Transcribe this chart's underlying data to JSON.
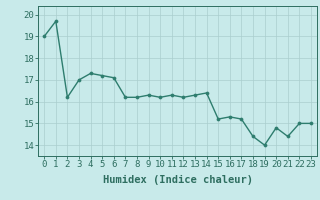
{
  "x": [
    0,
    1,
    2,
    3,
    4,
    5,
    6,
    7,
    8,
    9,
    10,
    11,
    12,
    13,
    14,
    15,
    16,
    17,
    18,
    19,
    20,
    21,
    22,
    23
  ],
  "y": [
    19.0,
    19.7,
    16.2,
    17.0,
    17.3,
    17.2,
    17.1,
    16.2,
    16.2,
    16.3,
    16.2,
    16.3,
    16.2,
    16.3,
    16.4,
    15.2,
    15.3,
    15.2,
    14.4,
    14.0,
    14.8,
    14.4,
    15.0,
    15.0
  ],
  "line_color": "#2e7d6e",
  "marker": "o",
  "marker_size": 2.2,
  "bg_color": "#c8eaea",
  "grid_color": "#aacece",
  "xlabel": "Humidex (Indice chaleur)",
  "ylim": [
    13.5,
    20.4
  ],
  "xlim": [
    -0.5,
    23.5
  ],
  "yticks": [
    14,
    15,
    16,
    17,
    18,
    19,
    20
  ],
  "xticks": [
    0,
    1,
    2,
    3,
    4,
    5,
    6,
    7,
    8,
    9,
    10,
    11,
    12,
    13,
    14,
    15,
    16,
    17,
    18,
    19,
    20,
    21,
    22,
    23
  ],
  "tick_color": "#2e6e60",
  "label_color": "#2e6e60",
  "xlabel_fontsize": 7.5,
  "tick_fontsize": 6.5,
  "line_width": 1.0
}
